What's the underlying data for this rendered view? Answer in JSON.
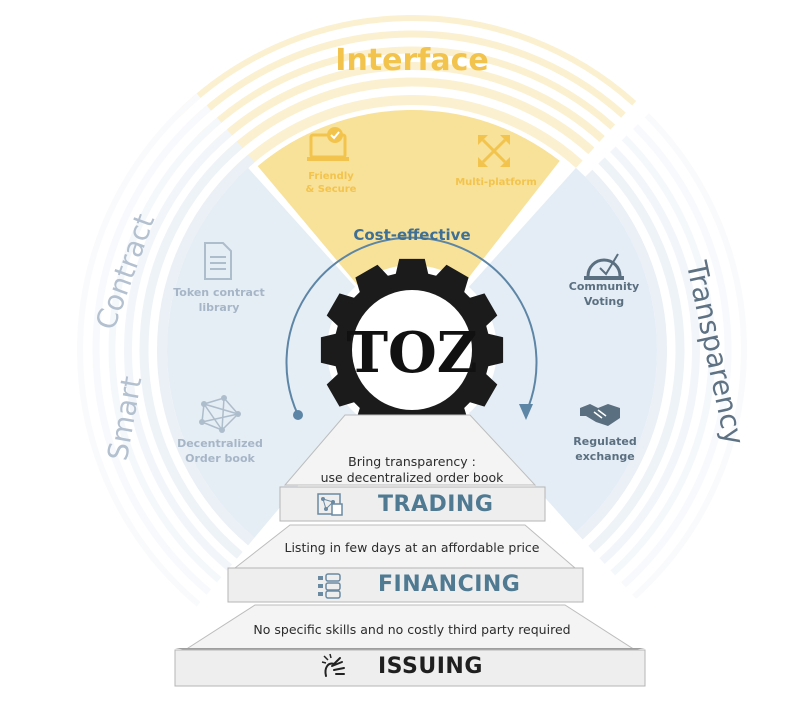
{
  "sectors": {
    "top": {
      "title": "Interface",
      "color": "#f6d779"
    },
    "left": {
      "title_line1": "Smart",
      "title_line2": "Contract",
      "color": "#c5d6e6"
    },
    "right": {
      "title": "Transparency",
      "color": "#c9dbe8"
    }
  },
  "center": {
    "logo": "TOZ",
    "arc_label": "Cost-effective"
  },
  "features": {
    "friendly": {
      "line1": "Friendly",
      "line2": "& Secure"
    },
    "multiplatform": "Multi-platform",
    "token_library": {
      "line1": "Token contract",
      "line2": "library"
    },
    "order_book": {
      "line1": "Decentralized",
      "line2": "Order book"
    },
    "voting": {
      "line1": "Community",
      "line2": "Voting"
    },
    "exchange": {
      "line1": "Regulated",
      "line2": "exchange"
    }
  },
  "steps": {
    "trading": {
      "title": "TRADING",
      "desc_line1": "Bring transparency :",
      "desc_line2": "use decentralized order book"
    },
    "financing": {
      "title": "FINANCING",
      "desc": "Listing in few days at an affordable price"
    },
    "issuing": {
      "title": "ISSUING",
      "desc": "No specific skills and no costly third party required"
    }
  }
}
